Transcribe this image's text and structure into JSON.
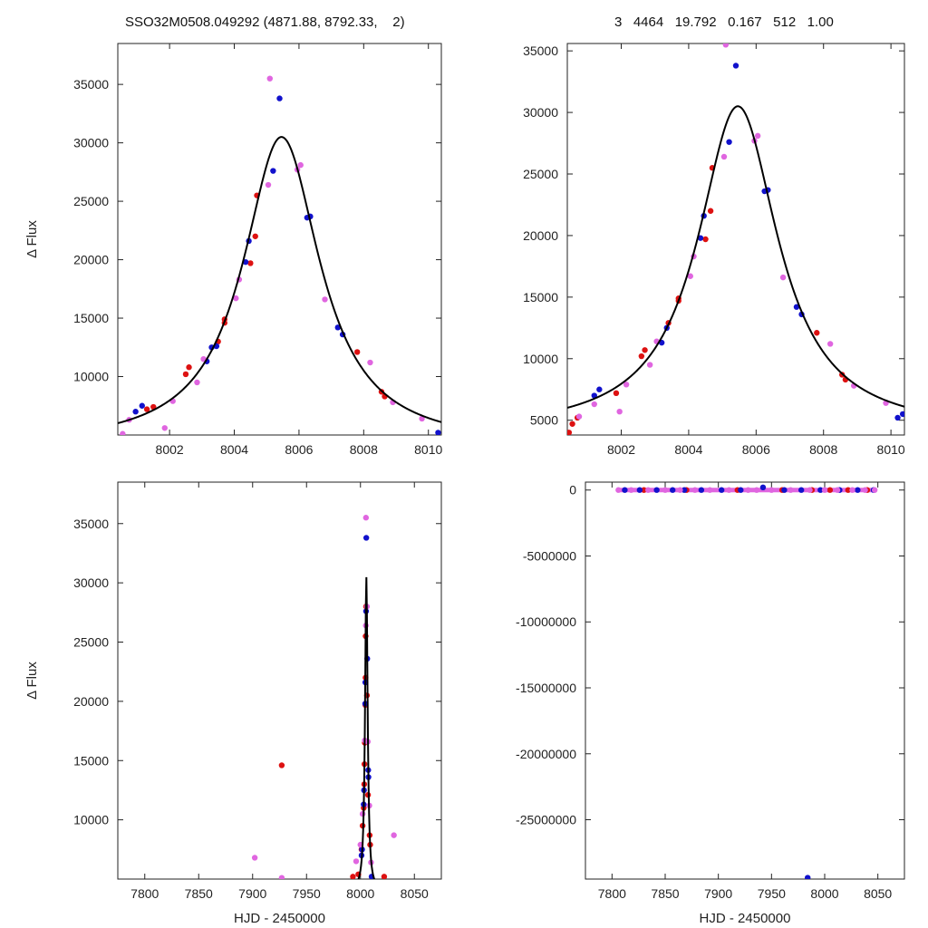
{
  "header": {
    "left": "SSO32M0508.049292 (4871.88, 8792.33,    2)",
    "right": "3   4464   19.792   0.167   512   1.00"
  },
  "colors": {
    "red": "#dd1111",
    "blue": "#1111cc",
    "pink": "#e066e0",
    "model": "#000000"
  },
  "chart_data": [
    {
      "type": "scatter",
      "panel": "top-left",
      "xlabel": "",
      "ylabel": "Δ Flux",
      "xlim": [
        8000.4,
        8010.4
      ],
      "ylim": [
        5000,
        38500
      ],
      "xticks": [
        8002,
        8004,
        8006,
        8008,
        8010
      ],
      "xtick_labels": [
        "8002",
        "8004",
        "8006",
        "8008",
        "8010"
      ],
      "yticks": [
        10000,
        15000,
        20000,
        25000,
        30000,
        35000
      ],
      "ytick_labels": [
        "10000",
        "15000",
        "20000",
        "25000",
        "30000",
        "35000"
      ],
      "model": {
        "peak_x": 8005.46,
        "peak_y": 30500,
        "base": 4000,
        "width": 1.45
      },
      "series": [
        {
          "color": "red",
          "points": [
            [
              8001.3,
              7200
            ],
            [
              8001.5,
              7400
            ],
            [
              8002.5,
              10200
            ],
            [
              8002.6,
              10800
            ],
            [
              8003.5,
              13000
            ],
            [
              8003.7,
              14600
            ],
            [
              8003.7,
              14900
            ],
            [
              8004.5,
              19700
            ],
            [
              8004.65,
              22000
            ],
            [
              8004.7,
              25500
            ],
            [
              8007.8,
              12100
            ],
            [
              8008.55,
              8700
            ],
            [
              8008.65,
              8300
            ]
          ]
        },
        {
          "color": "blue",
          "points": [
            [
              8000.95,
              7000
            ],
            [
              8001.15,
              7500
            ],
            [
              8003.15,
              11300
            ],
            [
              8003.3,
              12500
            ],
            [
              8003.45,
              12600
            ],
            [
              8004.35,
              19800
            ],
            [
              8004.45,
              21600
            ],
            [
              8005.2,
              27600
            ],
            [
              8005.4,
              33800
            ],
            [
              8006.25,
              23600
            ],
            [
              8006.35,
              23700
            ],
            [
              8007.2,
              14200
            ],
            [
              8007.35,
              13600
            ],
            [
              8010.3,
              5200
            ]
          ]
        },
        {
          "color": "pink",
          "points": [
            [
              8000.55,
              5100
            ],
            [
              8000.75,
              6300
            ],
            [
              8001.85,
              5600
            ],
            [
              8002.1,
              7900
            ],
            [
              8002.85,
              9500
            ],
            [
              8003.05,
              11500
            ],
            [
              8004.05,
              16700
            ],
            [
              8004.15,
              18300
            ],
            [
              8005.05,
              26400
            ],
            [
              8005.1,
              35500
            ],
            [
              8005.95,
              27700
            ],
            [
              8006.05,
              28100
            ],
            [
              8006.8,
              16600
            ],
            [
              8008.2,
              11200
            ],
            [
              8008.9,
              7800
            ],
            [
              8009.8,
              6400
            ]
          ]
        }
      ]
    },
    {
      "type": "scatter",
      "panel": "top-right",
      "xlabel": "",
      "ylabel": "",
      "xlim": [
        8000.4,
        8010.4
      ],
      "ylim": [
        3800,
        35600
      ],
      "xticks": [
        8002,
        8004,
        8006,
        8008,
        8010
      ],
      "xtick_labels": [
        "8002",
        "8004",
        "8006",
        "8008",
        "8010"
      ],
      "yticks": [
        5000,
        10000,
        15000,
        20000,
        25000,
        30000,
        35000
      ],
      "ytick_labels": [
        "5000",
        "10000",
        "15000",
        "20000",
        "25000",
        "30000",
        "35000"
      ],
      "model": {
        "peak_x": 8005.46,
        "peak_y": 30500,
        "base": 4000,
        "width": 1.45
      },
      "series": [
        {
          "color": "red",
          "points": [
            [
              8000.45,
              4000
            ],
            [
              8000.55,
              4700
            ],
            [
              8000.7,
              5200
            ],
            [
              8001.85,
              7200
            ],
            [
              8002.6,
              10200
            ],
            [
              8002.7,
              10700
            ],
            [
              8003.4,
              12900
            ],
            [
              8003.7,
              14700
            ],
            [
              8003.7,
              14900
            ],
            [
              8004.5,
              19700
            ],
            [
              8004.65,
              22000
            ],
            [
              8004.7,
              25500
            ],
            [
              8007.8,
              12100
            ],
            [
              8008.55,
              8700
            ],
            [
              8008.65,
              8300
            ]
          ]
        },
        {
          "color": "blue",
          "points": [
            [
              8001.2,
              7000
            ],
            [
              8001.35,
              7500
            ],
            [
              8003.2,
              11300
            ],
            [
              8003.35,
              12500
            ],
            [
              8004.35,
              19800
            ],
            [
              8004.45,
              21600
            ],
            [
              8005.2,
              27600
            ],
            [
              8005.4,
              33800
            ],
            [
              8006.25,
              23600
            ],
            [
              8006.35,
              23700
            ],
            [
              8007.2,
              14200
            ],
            [
              8007.35,
              13600
            ],
            [
              8010.2,
              5200
            ],
            [
              8010.35,
              5500
            ]
          ]
        },
        {
          "color": "pink",
          "points": [
            [
              8000.75,
              5300
            ],
            [
              8001.2,
              6300
            ],
            [
              8001.95,
              5700
            ],
            [
              8002.15,
              7900
            ],
            [
              8002.85,
              9500
            ],
            [
              8003.05,
              11400
            ],
            [
              8004.05,
              16700
            ],
            [
              8004.15,
              18300
            ],
            [
              8005.05,
              26400
            ],
            [
              8005.1,
              35500
            ],
            [
              8005.95,
              27700
            ],
            [
              8006.05,
              28100
            ],
            [
              8006.8,
              16600
            ],
            [
              8008.2,
              11200
            ],
            [
              8008.9,
              7800
            ],
            [
              8009.85,
              6400
            ]
          ]
        }
      ]
    },
    {
      "type": "scatter",
      "panel": "bottom-left",
      "xlabel": "HJD - 2450000",
      "ylabel": "Δ Flux",
      "xlim": [
        7775,
        8075
      ],
      "ylim": [
        5000,
        38500
      ],
      "xticks": [
        7800,
        7850,
        7900,
        7950,
        8000,
        8050
      ],
      "xtick_labels": [
        "7800",
        "7850",
        "7900",
        "7950",
        "8000",
        "8050"
      ],
      "yticks": [
        10000,
        15000,
        20000,
        25000,
        30000,
        35000
      ],
      "ytick_labels": [
        "10000",
        "15000",
        "20000",
        "25000",
        "30000",
        "35000"
      ],
      "model": {
        "peak_x": 8005.46,
        "peak_y": 30500,
        "base": 4000,
        "width": 1.45
      },
      "series": [
        {
          "color": "red",
          "points": [
            [
              7927,
              14600
            ],
            [
              7993,
              5200
            ],
            [
              7998,
              5400
            ],
            [
              8022,
              5200
            ],
            [
              8001,
              7500
            ],
            [
              8002,
              9500
            ],
            [
              8003,
              11000
            ],
            [
              8003.5,
              13000
            ],
            [
              8003.7,
              14700
            ],
            [
              8004,
              16500
            ],
            [
              8004.5,
              19700
            ],
            [
              8004.7,
              22000
            ],
            [
              8004.8,
              25500
            ],
            [
              8005.2,
              28000
            ],
            [
              8006,
              20500
            ],
            [
              8007,
              12100
            ],
            [
              8008.5,
              8700
            ],
            [
              8009,
              7900
            ]
          ]
        },
        {
          "color": "blue",
          "points": [
            [
              8001,
              7000
            ],
            [
              8001.5,
              7500
            ],
            [
              8003,
              11300
            ],
            [
              8003.3,
              12500
            ],
            [
              8004.4,
              19800
            ],
            [
              8004.5,
              21600
            ],
            [
              8005.2,
              27600
            ],
            [
              8005.4,
              33800
            ],
            [
              8006.3,
              23600
            ],
            [
              8007.2,
              14200
            ],
            [
              8007.4,
              13600
            ],
            [
              8010.3,
              5200
            ]
          ]
        },
        {
          "color": "pink",
          "points": [
            [
              7902,
              6800
            ],
            [
              7927,
              5100
            ],
            [
              8031,
              8700
            ],
            [
              7996,
              6500
            ],
            [
              8000,
              7900
            ],
            [
              8002,
              10500
            ],
            [
              8004,
              16700
            ],
            [
              8005,
              26400
            ],
            [
              8005.1,
              35500
            ],
            [
              8006,
              28000
            ],
            [
              8006.8,
              16600
            ],
            [
              8008.2,
              11200
            ],
            [
              8009.8,
              6400
            ]
          ]
        }
      ]
    },
    {
      "type": "scatter",
      "panel": "bottom-right",
      "xlabel": "HJD - 2450000",
      "ylabel": "",
      "xlim": [
        7775,
        8075
      ],
      "ylim": [
        -29500000,
        600000
      ],
      "xticks": [
        7800,
        7850,
        7900,
        7950,
        8000,
        8050
      ],
      "xtick_labels": [
        "7800",
        "7850",
        "7900",
        "7950",
        "8000",
        "8050"
      ],
      "yticks": [
        0,
        -5000000,
        -10000000,
        -15000000,
        -20000000,
        -25000000
      ],
      "ytick_labels": [
        "0",
        "-5000000",
        "-10000000",
        "-15000000",
        "-20000000",
        "-25000000"
      ],
      "band": {
        "x_from": 7806,
        "x_to": 8047,
        "y": 0
      },
      "series": [
        {
          "color": "red",
          "points": [
            [
              7830,
              0
            ],
            [
              7870,
              0
            ],
            [
              7918,
              0
            ],
            [
              7960,
              0
            ],
            [
              7988,
              0
            ],
            [
              8005,
              0
            ],
            [
              8022,
              0
            ],
            [
              8040,
              0
            ]
          ]
        },
        {
          "color": "blue",
          "points": [
            [
              7812,
              0
            ],
            [
              7826,
              0
            ],
            [
              7842,
              0
            ],
            [
              7857,
              0
            ],
            [
              7868,
              0
            ],
            [
              7884,
              0
            ],
            [
              7903,
              0
            ],
            [
              7921,
              0
            ],
            [
              7942,
              200000
            ],
            [
              7962,
              0
            ],
            [
              7978,
              0
            ],
            [
              7996,
              0
            ],
            [
              8014,
              0
            ],
            [
              8031,
              0
            ],
            [
              8046,
              0
            ],
            [
              7984,
              -29400000
            ]
          ]
        },
        {
          "color": "pink",
          "points": [
            [
              7806,
              0
            ],
            [
              7818,
              0
            ],
            [
              7834,
              0
            ],
            [
              7850,
              0
            ],
            [
              7864,
              0
            ],
            [
              7878,
              0
            ],
            [
              7892,
              0
            ],
            [
              7910,
              0
            ],
            [
              7928,
              0
            ],
            [
              7936,
              0
            ],
            [
              7950,
              0
            ],
            [
              7968,
              0
            ],
            [
              7986,
              0
            ],
            [
              8000,
              0
            ],
            [
              8012,
              0
            ],
            [
              8026,
              0
            ],
            [
              8038,
              0
            ],
            [
              8047,
              0
            ]
          ]
        }
      ]
    }
  ]
}
